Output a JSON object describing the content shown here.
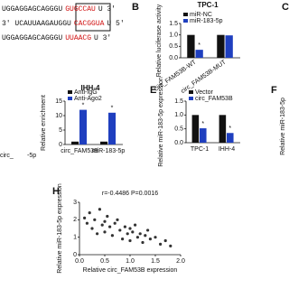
{
  "sequences": [
    {
      "left": "UGGAGGAGCAGGGU",
      "site": "GUGCCAU",
      "right": "U 3'"
    },
    {
      "left": "3' UCAUUAAGAUGGU",
      "site": "CACGGUA",
      "right": "U 5'"
    },
    {
      "left": "UGGAGGAGCAGGGU",
      "site": "UUAACG",
      "right": "U 3'"
    }
  ],
  "panel_labels": [
    "B",
    "C",
    "E",
    "F",
    "H"
  ],
  "fragments": [
    "Relative miR-183-5p",
    "circ_",
    "-5p"
  ],
  "chart_data": [
    {
      "type": "bar",
      "title": "TPC-1",
      "ylabel": "Relative luciferase activity",
      "categories": [
        "circ_FAM53B-WT",
        "circ_FAM53B-MUT"
      ],
      "series": [
        {
          "name": "miR-NC",
          "color": "#111111",
          "values": [
            1.0,
            1.0
          ]
        },
        {
          "name": "miR-183-5p",
          "color": "#1f3fbf",
          "values": [
            0.35,
            0.98
          ]
        }
      ],
      "ylim": [
        0,
        1.5
      ],
      "yticks": [
        {
          "value": 0,
          "label": "0.0"
        },
        0.5,
        {
          "value": 1,
          "label": "1.0"
        },
        1.5
      ],
      "annotation": "*"
    },
    {
      "type": "bar",
      "title": "IHH-4",
      "ylabel": "Relative enrichment",
      "categories": [
        "circ_FAM53B",
        "miR-183-5p"
      ],
      "series": [
        {
          "name": "Anti-IgG",
          "color": "#111111",
          "values": [
            1,
            1
          ]
        },
        {
          "name": "Anti-Ago2",
          "color": "#1f3fbf",
          "values": [
            12,
            11
          ]
        }
      ],
      "ylim": [
        0,
        15
      ],
      "yticks": [
        0,
        5,
        10,
        15
      ],
      "annotation": "*"
    },
    {
      "type": "bar",
      "ylabel": "Relative miR-183-5p expression",
      "categories": [
        "TPC-1",
        "IHH-4"
      ],
      "series": [
        {
          "name": "Vector",
          "color": "#111111",
          "values": [
            1.0,
            1.0
          ]
        },
        {
          "name": "circ_FAM53B",
          "color": "#1f3fbf",
          "values": [
            0.52,
            0.35
          ]
        }
      ],
      "ylim": [
        0,
        1.5
      ],
      "yticks": [
        {
          "value": 0,
          "label": "0.0"
        },
        0.5,
        {
          "value": 1,
          "label": "1.0"
        },
        1.5
      ],
      "annotation": "*"
    },
    {
      "type": "scatter",
      "annotation": "r=-0.4486 P=0.0016",
      "xlabel": "Relative circ_FAM53B expression",
      "ylabel": "Relative miR-183-5p expression",
      "x": [
        0.1,
        0.15,
        0.2,
        0.25,
        0.3,
        0.35,
        0.4,
        0.45,
        0.5,
        0.5,
        0.55,
        0.6,
        0.65,
        0.7,
        0.75,
        0.8,
        0.85,
        0.9,
        0.95,
        1.0,
        1.0,
        1.05,
        1.1,
        1.15,
        1.2,
        1.25,
        1.3,
        1.35,
        1.4,
        1.5,
        1.6,
        1.7,
        1.8
      ],
      "y": [
        2.1,
        1.8,
        2.4,
        1.5,
        2.0,
        1.2,
        2.6,
        1.7,
        1.9,
        1.3,
        2.2,
        1.6,
        1.1,
        1.8,
        2.0,
        1.4,
        0.9,
        1.6,
        1.2,
        1.5,
        0.8,
        1.3,
        1.7,
        1.0,
        1.2,
        0.7,
        1.1,
        1.4,
        0.9,
        1.0,
        0.6,
        0.8,
        0.5
      ],
      "color": "#333333",
      "xlim": [
        0,
        2
      ],
      "xticks": [
        {
          "value": 0,
          "label": "0.0"
        },
        0.5,
        {
          "value": 1,
          "label": "1.0"
        },
        1.5,
        {
          "value": 2,
          "label": "2.0"
        }
      ],
      "ylim": [
        0,
        3
      ],
      "yticks": [
        0,
        1,
        2,
        3
      ]
    }
  ]
}
